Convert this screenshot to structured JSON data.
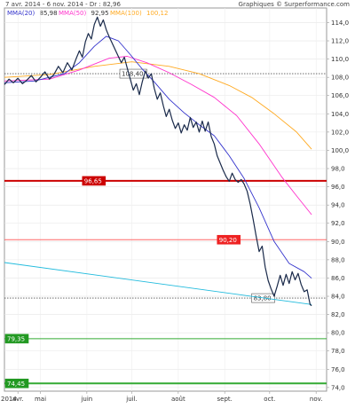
{
  "header": {
    "title": "7 avr. 2014 - 6 nov. 2014 - Dr : 82,96",
    "credit": "Graphiques © Surperformance.com",
    "legend": [
      {
        "label": "MMA(20)",
        "value": "85,98",
        "color": "#3333cc"
      },
      {
        "label": "MMA(50)",
        "value": "92,95",
        "color": "#ff33cc"
      },
      {
        "label": "MMA(100)",
        "value": "100,12",
        "color": "#ffaa22"
      }
    ]
  },
  "chart_data": {
    "type": "line",
    "ylim": [
      73.6,
      115.6
    ],
    "y_ticks": [
      "114,0",
      "112,0",
      "110,0",
      "108,0",
      "106,0",
      "104,0",
      "102,0",
      "100,0",
      "98,0",
      "96,0",
      "94,0",
      "92,0",
      "90,0",
      "88,0",
      "86,0",
      "84,0",
      "82,0",
      "80,0",
      "78,0",
      "76,0",
      "74,0"
    ],
    "x_labels": [
      {
        "label": "2014",
        "day": 0
      },
      {
        "label": "avr.",
        "day": 9
      },
      {
        "label": "mai",
        "day": 24
      },
      {
        "label": "juin",
        "day": 55
      },
      {
        "label": "juil.",
        "day": 85
      },
      {
        "label": "août",
        "day": 116
      },
      {
        "label": "sept.",
        "day": 147
      },
      {
        "label": "oct.",
        "day": 177
      },
      {
        "label": "nov.",
        "day": 208
      }
    ],
    "x_range_days": [
      0,
      215
    ],
    "series": [
      {
        "key": "price",
        "color": "#1a2a4a",
        "points": [
          [
            0,
            107.2
          ],
          [
            3,
            107.8
          ],
          [
            6,
            107.4
          ],
          [
            9,
            107.9
          ],
          [
            12,
            107.3
          ],
          [
            15,
            107.7
          ],
          [
            18,
            108.2
          ],
          [
            21,
            107.5
          ],
          [
            24,
            108.0
          ],
          [
            27,
            108.6
          ],
          [
            30,
            107.8
          ],
          [
            33,
            108.3
          ],
          [
            36,
            109.2
          ],
          [
            39,
            108.5
          ],
          [
            42,
            109.6
          ],
          [
            45,
            108.8
          ],
          [
            48,
            110.1
          ],
          [
            50,
            110.9
          ],
          [
            52,
            110.2
          ],
          [
            54,
            111.9
          ],
          [
            56,
            112.8
          ],
          [
            58,
            112.2
          ],
          [
            60,
            113.8
          ],
          [
            62,
            114.6
          ],
          [
            64,
            113.6
          ],
          [
            66,
            114.3
          ],
          [
            68,
            113.2
          ],
          [
            70,
            112.4
          ],
          [
            72,
            111.7
          ],
          [
            74,
            111.0
          ],
          [
            76,
            110.3
          ],
          [
            78,
            109.6
          ],
          [
            80,
            110.2
          ],
          [
            82,
            109.0
          ],
          [
            84,
            107.8
          ],
          [
            86,
            106.6
          ],
          [
            88,
            107.3
          ],
          [
            90,
            106.1
          ],
          [
            92,
            107.5
          ],
          [
            94,
            108.7
          ],
          [
            96,
            107.9
          ],
          [
            98,
            108.4
          ],
          [
            100,
            106.8
          ],
          [
            102,
            105.6
          ],
          [
            104,
            106.3
          ],
          [
            106,
            104.9
          ],
          [
            108,
            103.7
          ],
          [
            110,
            104.5
          ],
          [
            112,
            103.3
          ],
          [
            114,
            102.4
          ],
          [
            116,
            103.0
          ],
          [
            118,
            101.9
          ],
          [
            120,
            102.8
          ],
          [
            122,
            102.2
          ],
          [
            124,
            103.6
          ],
          [
            126,
            102.5
          ],
          [
            128,
            103.1
          ],
          [
            130,
            102.0
          ],
          [
            132,
            103.2
          ],
          [
            134,
            102.1
          ],
          [
            136,
            103.1
          ],
          [
            138,
            101.5
          ],
          [
            140,
            100.7
          ],
          [
            142,
            99.4
          ],
          [
            144,
            98.6
          ],
          [
            146,
            97.8
          ],
          [
            148,
            97.1
          ],
          [
            150,
            96.6
          ],
          [
            152,
            97.5
          ],
          [
            154,
            96.8
          ],
          [
            156,
            96.5
          ],
          [
            158,
            96.8
          ],
          [
            160,
            96.3
          ],
          [
            162,
            95.5
          ],
          [
            164,
            94.1
          ],
          [
            166,
            92.4
          ],
          [
            168,
            90.6
          ],
          [
            170,
            88.9
          ],
          [
            172,
            89.5
          ],
          [
            174,
            87.2
          ],
          [
            176,
            85.7
          ],
          [
            178,
            84.8
          ],
          [
            180,
            84.0
          ],
          [
            182,
            85.1
          ],
          [
            184,
            86.3
          ],
          [
            186,
            85.2
          ],
          [
            188,
            86.4
          ],
          [
            190,
            85.4
          ],
          [
            192,
            86.7
          ],
          [
            194,
            85.8
          ],
          [
            196,
            86.5
          ],
          [
            198,
            85.3
          ],
          [
            200,
            84.5
          ],
          [
            202,
            84.7
          ],
          [
            204,
            83.1
          ],
          [
            205,
            82.96
          ]
        ]
      },
      {
        "key": "mma20",
        "color": "#3333cc",
        "points": [
          [
            0,
            107.4
          ],
          [
            20,
            107.6
          ],
          [
            40,
            108.4
          ],
          [
            50,
            109.6
          ],
          [
            60,
            111.4
          ],
          [
            68,
            112.5
          ],
          [
            76,
            112.0
          ],
          [
            84,
            110.5
          ],
          [
            92,
            108.9
          ],
          [
            100,
            107.5
          ],
          [
            110,
            105.6
          ],
          [
            120,
            104.1
          ],
          [
            130,
            102.8
          ],
          [
            140,
            101.6
          ],
          [
            150,
            99.4
          ],
          [
            160,
            96.9
          ],
          [
            170,
            93.7
          ],
          [
            180,
            90.0
          ],
          [
            190,
            87.6
          ],
          [
            200,
            86.7
          ],
          [
            205,
            85.98
          ]
        ]
      },
      {
        "key": "mma50",
        "color": "#ff33cc",
        "points": [
          [
            0,
            107.6
          ],
          [
            30,
            107.8
          ],
          [
            50,
            108.8
          ],
          [
            70,
            110.1
          ],
          [
            82,
            110.3
          ],
          [
            95,
            109.6
          ],
          [
            110,
            108.5
          ],
          [
            125,
            107.2
          ],
          [
            140,
            105.8
          ],
          [
            155,
            103.8
          ],
          [
            170,
            100.7
          ],
          [
            185,
            97.1
          ],
          [
            195,
            95.0
          ],
          [
            205,
            92.95
          ]
        ]
      },
      {
        "key": "mma100",
        "color": "#ffaa22",
        "points": [
          [
            0,
            108.0
          ],
          [
            30,
            108.3
          ],
          [
            60,
            109.2
          ],
          [
            85,
            109.7
          ],
          [
            110,
            109.2
          ],
          [
            130,
            108.4
          ],
          [
            150,
            107.1
          ],
          [
            165,
            105.8
          ],
          [
            180,
            104.0
          ],
          [
            195,
            102.0
          ],
          [
            205,
            100.12
          ]
        ]
      },
      {
        "key": "trend",
        "color": "#22bbdd",
        "points": [
          [
            0,
            87.7
          ],
          [
            205,
            83.1
          ]
        ]
      }
    ],
    "levels": [
      {
        "label": "108,40",
        "value": 108.4,
        "color": "#555555",
        "style": "dotted",
        "label_day": 77,
        "label_bg": "#ffffff",
        "label_fg": "#333333"
      },
      {
        "label": "96,65",
        "value": 96.65,
        "color": "#cc0000",
        "style": "solid",
        "label_day": 52,
        "label_bg": "#cc0000",
        "label_fg": "#ffffff",
        "width": 2
      },
      {
        "label": "90,20",
        "value": 90.2,
        "color": "#ff6666",
        "style": "solid",
        "label_day": 142,
        "label_bg": "#ee2222",
        "label_fg": "#ffffff",
        "width": 1
      },
      {
        "label": "83,80",
        "value": 83.8,
        "color": "#555555",
        "style": "dotted",
        "label_day": 165,
        "label_bg": "#ffffff",
        "label_fg": "#333333"
      },
      {
        "label": "79,35",
        "value": 79.35,
        "color": "#33aa33",
        "style": "solid",
        "label_day": -2,
        "label_bg": "#229922",
        "label_fg": "#ffffff",
        "width": 1
      },
      {
        "label": "74,45",
        "value": 74.45,
        "color": "#33aa33",
        "style": "solid",
        "label_day": -2,
        "label_bg": "#229922",
        "label_fg": "#ffffff",
        "width": 2
      }
    ]
  }
}
